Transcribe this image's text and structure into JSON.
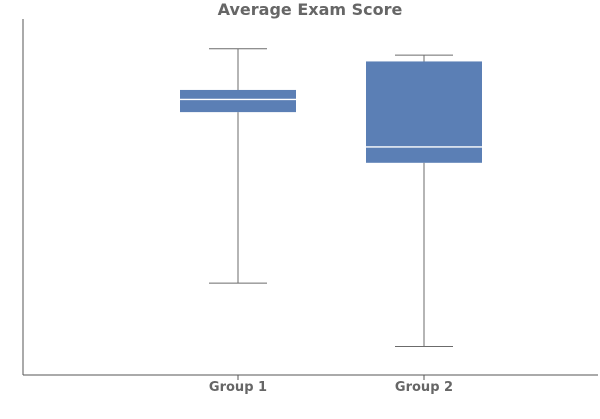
{
  "chart_data": {
    "type": "box",
    "title": "Average Exam Score",
    "xlabel": "",
    "ylabel": "",
    "categories": [
      "Group 1",
      "Group 2"
    ],
    "boxes": [
      {
        "category": "Group 1",
        "min": 56.0,
        "q1": 83.0,
        "median": 85.0,
        "q3": 86.5,
        "max": 93.0
      },
      {
        "category": "Group 2",
        "min": 46.0,
        "q1": 75.0,
        "median": 77.5,
        "q3": 91.0,
        "max": 92.0
      }
    ],
    "ylim": [
      41.5,
      97.7
    ],
    "grid": false,
    "colors": {
      "box": "#5b7fb5",
      "median": "#ffffff",
      "whisker": "#6b6b6b",
      "axis": "#555555",
      "text": "#666666"
    }
  }
}
